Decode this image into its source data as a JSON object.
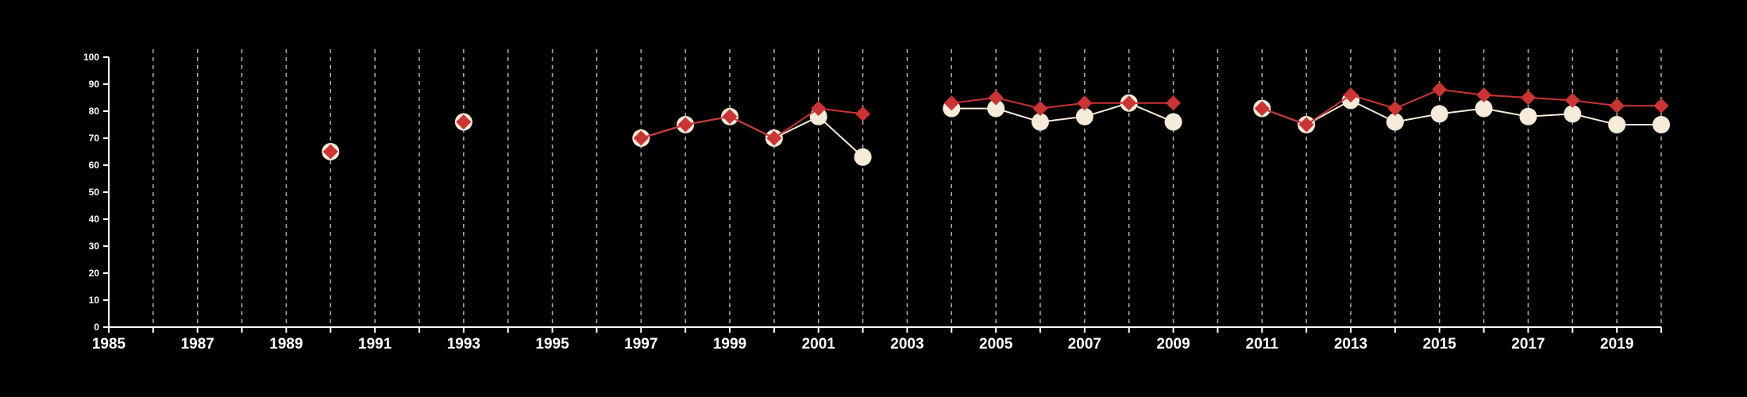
{
  "chart_data": {
    "type": "line",
    "title": "",
    "xlabel": "",
    "ylabel": "",
    "xlim": [
      1985,
      2020
    ],
    "ylim": [
      0,
      100
    ],
    "x_ticks": [
      1985,
      1986,
      1987,
      1988,
      1989,
      1990,
      1991,
      1992,
      1993,
      1994,
      1995,
      1996,
      1997,
      1998,
      1999,
      2000,
      2001,
      2002,
      2003,
      2004,
      2005,
      2006,
      2007,
      2008,
      2009,
      2010,
      2011,
      2012,
      2013,
      2014,
      2015,
      2016,
      2017,
      2018,
      2019,
      2020
    ],
    "x_tick_labels": [
      "1985",
      "",
      "1987",
      "",
      "1989",
      "",
      "1991",
      "",
      "1993",
      "",
      "1995",
      "",
      "1997",
      "",
      "1999",
      "",
      "2001",
      "",
      "2003",
      "",
      "2005",
      "",
      "2007",
      "",
      "2009",
      "",
      "2011",
      "",
      "2013",
      "",
      "2015",
      "",
      "2017",
      "",
      "2019",
      ""
    ],
    "y_ticks": [
      0,
      10,
      20,
      30,
      40,
      50,
      60,
      70,
      80,
      90,
      100
    ],
    "y_tick_labels": [
      "0",
      "10",
      "20",
      "30",
      "40",
      "50",
      "60",
      "70",
      "80",
      "90",
      "100"
    ],
    "grid": "vertical dashed",
    "legend": "none",
    "series": [
      {
        "marker": "circle",
        "color": "#f6ead8",
        "stroke": "#f6ead8",
        "points": [
          [
            1990,
            65
          ],
          [
            null,
            null
          ],
          [
            1993,
            76
          ],
          [
            null,
            null
          ],
          [
            1997,
            70
          ],
          [
            1998,
            75
          ],
          [
            1999,
            78
          ],
          [
            2000,
            70
          ],
          [
            2001,
            78
          ],
          [
            2002,
            63
          ],
          [
            null,
            null
          ],
          [
            2004,
            81
          ],
          [
            2005,
            81
          ],
          [
            2006,
            76
          ],
          [
            2007,
            78
          ],
          [
            2008,
            83
          ],
          [
            2009,
            76
          ],
          [
            null,
            null
          ],
          [
            2011,
            81
          ],
          [
            2012,
            75
          ],
          [
            2013,
            84
          ],
          [
            2014,
            76
          ],
          [
            2015,
            79
          ],
          [
            2016,
            81
          ],
          [
            2017,
            78
          ],
          [
            2018,
            79
          ],
          [
            2019,
            75
          ],
          [
            2020,
            75
          ]
        ]
      },
      {
        "marker": "diamond",
        "color": "#cc3333",
        "stroke": "#cc3333",
        "points": [
          [
            1990,
            65
          ],
          [
            null,
            null
          ],
          [
            1993,
            76
          ],
          [
            null,
            null
          ],
          [
            1997,
            70
          ],
          [
            1998,
            75
          ],
          [
            1999,
            78
          ],
          [
            2000,
            70
          ],
          [
            2001,
            81
          ],
          [
            2002,
            79
          ],
          [
            null,
            null
          ],
          [
            2004,
            83
          ],
          [
            2005,
            85
          ],
          [
            2006,
            81
          ],
          [
            2007,
            83
          ],
          [
            2008,
            83
          ],
          [
            2009,
            83
          ],
          [
            null,
            null
          ],
          [
            2011,
            81
          ],
          [
            2012,
            75
          ],
          [
            2013,
            86
          ],
          [
            2014,
            81
          ],
          [
            2015,
            88
          ],
          [
            2016,
            86
          ],
          [
            2017,
            85
          ],
          [
            2018,
            84
          ],
          [
            2019,
            82
          ],
          [
            2020,
            82
          ]
        ]
      }
    ]
  }
}
